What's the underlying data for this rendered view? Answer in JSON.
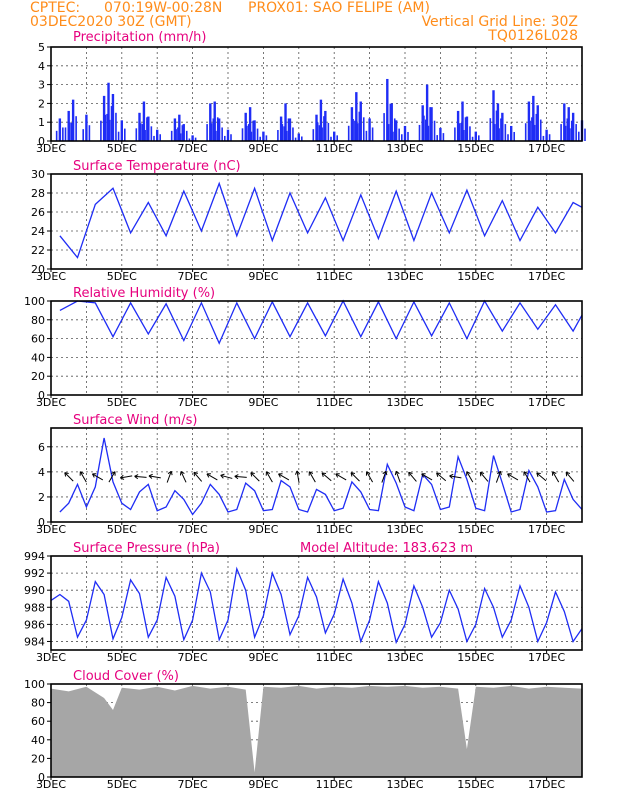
{
  "header": {
    "source": "CPTEC:",
    "coords": "070:19W-00:28N",
    "location": "PROX01: SAO FELIPE (AM)",
    "run": "03DEC2020 30Z (GMT)",
    "grid_note": "Vertical Grid Line: 30Z",
    "model_code": "TQ0126L028"
  },
  "colors": {
    "header": "#ff8c1a",
    "title": "#e6007e",
    "series": "#1f2df5",
    "cloud": "#a6a6a6",
    "grid": "#555555"
  },
  "x_ticks": [
    "3DEC",
    "5DEC",
    "7DEC",
    "9DEC",
    "11DEC",
    "13DEC",
    "15DEC",
    "17DEC"
  ],
  "chart_data": [
    {
      "id": "precip",
      "type": "bar",
      "title": "Precipitation (mm/h)",
      "ylim": [
        0,
        5
      ],
      "yticks": [
        "0",
        "1",
        "2",
        "3",
        "4",
        "5"
      ],
      "grid": true,
      "x": [
        "2020-12-03T06",
        "2020-12-03T12",
        "2020-12-03T15",
        "2020-12-04T00",
        "2020-12-04T12",
        "2020-12-04T15",
        "2020-12-04T18",
        "2020-12-05T00",
        "2020-12-05T12",
        "2020-12-05T15",
        "2020-12-05T18",
        "2020-12-06T00",
        "2020-12-06T12",
        "2020-12-06T15",
        "2020-12-06T18",
        "2020-12-07T00",
        "2020-12-07T12",
        "2020-12-07T15",
        "2020-12-07T18",
        "2020-12-08T00",
        "2020-12-08T12",
        "2020-12-08T15",
        "2020-12-08T18",
        "2020-12-09T00",
        "2020-12-09T12",
        "2020-12-09T15",
        "2020-12-09T18",
        "2020-12-10T00",
        "2020-12-10T12",
        "2020-12-10T15",
        "2020-12-10T18",
        "2020-12-11T00",
        "2020-12-11T12",
        "2020-12-11T15",
        "2020-12-11T18",
        "2020-12-12T00",
        "2020-12-12T12",
        "2020-12-12T15",
        "2020-12-12T18",
        "2020-12-13T00",
        "2020-12-13T12",
        "2020-12-13T15",
        "2020-12-13T18",
        "2020-12-14T00",
        "2020-12-14T12",
        "2020-12-14T15",
        "2020-12-14T18",
        "2020-12-15T00",
        "2020-12-15T12",
        "2020-12-15T15",
        "2020-12-15T18",
        "2020-12-16T00",
        "2020-12-16T12",
        "2020-12-16T15",
        "2020-12-16T18",
        "2020-12-17T00",
        "2020-12-17T12",
        "2020-12-17T15",
        "2020-12-17T18",
        "2020-12-18T00"
      ],
      "values": [
        1.2,
        1.6,
        2.2,
        1.4,
        2.4,
        3.1,
        2.5,
        1.1,
        1.5,
        2.1,
        1.3,
        0.6,
        1.2,
        1.4,
        0.9,
        0.3,
        2.0,
        2.1,
        1.2,
        0.6,
        1.5,
        1.8,
        1.1,
        0.5,
        1.3,
        2.0,
        1.2,
        0.4,
        1.4,
        2.2,
        1.6,
        0.5,
        1.8,
        2.6,
        2.1,
        1.2,
        3.3,
        2.0,
        1.1,
        0.8,
        1.9,
        3.0,
        1.8,
        0.7,
        1.6,
        2.1,
        1.3,
        0.5,
        2.7,
        2.0,
        1.5,
        0.8,
        2.1,
        2.4,
        1.9,
        0.6,
        2.0,
        1.8,
        1.5,
        1.1
      ]
    },
    {
      "id": "temp",
      "type": "line",
      "title": "Surface Temperature (nC)",
      "ylim": [
        20,
        30
      ],
      "yticks": [
        "20",
        "22",
        "24",
        "26",
        "28",
        "30"
      ],
      "grid": true,
      "x": [
        "2020-12-03T06",
        "2020-12-03T18",
        "2020-12-04T06",
        "2020-12-04T18",
        "2020-12-05T06",
        "2020-12-05T18",
        "2020-12-06T06",
        "2020-12-06T18",
        "2020-12-07T06",
        "2020-12-07T18",
        "2020-12-08T06",
        "2020-12-08T18",
        "2020-12-09T06",
        "2020-12-09T18",
        "2020-12-10T06",
        "2020-12-10T18",
        "2020-12-11T06",
        "2020-12-11T18",
        "2020-12-12T06",
        "2020-12-12T18",
        "2020-12-13T06",
        "2020-12-13T18",
        "2020-12-14T06",
        "2020-12-14T18",
        "2020-12-15T06",
        "2020-12-15T18",
        "2020-12-16T06",
        "2020-12-16T18",
        "2020-12-17T06",
        "2020-12-17T18",
        "2020-12-18T00"
      ],
      "values": [
        23.5,
        21.2,
        26.8,
        28.5,
        23.8,
        27.0,
        23.5,
        28.2,
        24.0,
        29.0,
        23.5,
        28.5,
        23.0,
        28.0,
        23.8,
        27.5,
        23.0,
        27.8,
        23.2,
        28.2,
        23.0,
        28.0,
        23.8,
        28.3,
        23.5,
        27.2,
        23.0,
        26.5,
        23.8,
        27.0,
        26.5
      ]
    },
    {
      "id": "rh",
      "type": "line",
      "title": "Relative Humidity (%)",
      "ylim": [
        0,
        100
      ],
      "yticks": [
        "0",
        "20",
        "40",
        "60",
        "80",
        "100"
      ],
      "grid": true,
      "x": [
        "2020-12-03T06",
        "2020-12-03T18",
        "2020-12-04T06",
        "2020-12-04T18",
        "2020-12-05T06",
        "2020-12-05T18",
        "2020-12-06T06",
        "2020-12-06T18",
        "2020-12-07T06",
        "2020-12-07T18",
        "2020-12-08T06",
        "2020-12-08T18",
        "2020-12-09T06",
        "2020-12-09T18",
        "2020-12-10T06",
        "2020-12-10T18",
        "2020-12-11T06",
        "2020-12-11T18",
        "2020-12-12T06",
        "2020-12-12T18",
        "2020-12-13T06",
        "2020-12-13T18",
        "2020-12-14T06",
        "2020-12-14T18",
        "2020-12-15T06",
        "2020-12-15T18",
        "2020-12-16T06",
        "2020-12-16T18",
        "2020-12-17T06",
        "2020-12-17T18",
        "2020-12-18T00"
      ],
      "values": [
        90,
        100,
        98,
        62,
        98,
        65,
        97,
        58,
        98,
        55,
        98,
        60,
        99,
        62,
        98,
        63,
        100,
        62,
        99,
        60,
        99,
        63,
        98,
        60,
        100,
        68,
        98,
        70,
        96,
        68,
        85
      ]
    },
    {
      "id": "wind",
      "type": "line",
      "title": "Surface Wind (m/s)",
      "ylim": [
        0,
        7.5
      ],
      "yticks": [
        "0",
        "2",
        "4",
        "6"
      ],
      "grid": true,
      "x": [
        "2020-12-03T06",
        "2020-12-03T12",
        "2020-12-03T18",
        "2020-12-04T00",
        "2020-12-04T06",
        "2020-12-04T12",
        "2020-12-04T18",
        "2020-12-05T00",
        "2020-12-05T06",
        "2020-12-05T12",
        "2020-12-05T18",
        "2020-12-06T00",
        "2020-12-06T06",
        "2020-12-06T12",
        "2020-12-06T18",
        "2020-12-07T00",
        "2020-12-07T06",
        "2020-12-07T12",
        "2020-12-07T18",
        "2020-12-08T00",
        "2020-12-08T06",
        "2020-12-08T12",
        "2020-12-08T18",
        "2020-12-09T00",
        "2020-12-09T06",
        "2020-12-09T12",
        "2020-12-09T18",
        "2020-12-10T00",
        "2020-12-10T06",
        "2020-12-10T12",
        "2020-12-10T18",
        "2020-12-11T00",
        "2020-12-11T06",
        "2020-12-11T12",
        "2020-12-11T18",
        "2020-12-12T00",
        "2020-12-12T06",
        "2020-12-12T12",
        "2020-12-12T18",
        "2020-12-13T00",
        "2020-12-13T06",
        "2020-12-13T12",
        "2020-12-13T18",
        "2020-12-14T00",
        "2020-12-14T06",
        "2020-12-14T12",
        "2020-12-14T18",
        "2020-12-15T00",
        "2020-12-15T06",
        "2020-12-15T12",
        "2020-12-15T18",
        "2020-12-16T00",
        "2020-12-16T06",
        "2020-12-16T12",
        "2020-12-16T18",
        "2020-12-17T00",
        "2020-12-17T06",
        "2020-12-17T12",
        "2020-12-17T18",
        "2020-12-18T00"
      ],
      "values": [
        0.8,
        1.5,
        3.0,
        1.2,
        2.8,
        6.7,
        3.2,
        1.5,
        1.0,
        2.4,
        3.0,
        0.9,
        1.2,
        2.5,
        1.8,
        0.6,
        1.5,
        3.0,
        2.2,
        0.8,
        1.0,
        3.1,
        2.5,
        0.9,
        1.0,
        3.3,
        2.8,
        1.0,
        0.8,
        2.6,
        2.2,
        0.9,
        1.1,
        3.2,
        2.4,
        1.0,
        0.9,
        4.6,
        3.1,
        1.2,
        0.9,
        3.8,
        3.0,
        1.0,
        1.2,
        5.2,
        3.4,
        1.1,
        0.9,
        5.3,
        3.1,
        0.8,
        1.0,
        4.1,
        2.8,
        0.8,
        0.9,
        3.4,
        1.8,
        1.0
      ],
      "arrow_directions_deg": [
        315,
        330,
        300,
        30,
        260,
        275,
        280,
        20,
        335,
        320,
        300,
        285,
        275,
        315,
        330,
        300,
        350,
        330,
        310,
        300,
        315,
        330,
        20,
        340,
        320,
        300,
        310,
        280,
        330,
        320,
        20,
        300,
        330,
        310,
        330,
        320
      ]
    },
    {
      "id": "pressure",
      "type": "line",
      "title": "Surface Pressure (hPa)",
      "annotation": "Model Altitude: 183.623 m",
      "ylim": [
        983,
        994
      ],
      "yticks": [
        "984",
        "986",
        "988",
        "990",
        "992",
        "994"
      ],
      "grid": true,
      "x": [
        "2020-12-03T00",
        "2020-12-03T06",
        "2020-12-03T12",
        "2020-12-03T18",
        "2020-12-04T00",
        "2020-12-04T06",
        "2020-12-04T12",
        "2020-12-04T18",
        "2020-12-05T00",
        "2020-12-05T06",
        "2020-12-05T12",
        "2020-12-05T18",
        "2020-12-06T00",
        "2020-12-06T06",
        "2020-12-06T12",
        "2020-12-06T18",
        "2020-12-07T00",
        "2020-12-07T06",
        "2020-12-07T12",
        "2020-12-07T18",
        "2020-12-08T00",
        "2020-12-08T06",
        "2020-12-08T12",
        "2020-12-08T18",
        "2020-12-09T00",
        "2020-12-09T06",
        "2020-12-09T12",
        "2020-12-09T18",
        "2020-12-10T00",
        "2020-12-10T06",
        "2020-12-10T12",
        "2020-12-10T18",
        "2020-12-11T00",
        "2020-12-11T06",
        "2020-12-11T12",
        "2020-12-11T18",
        "2020-12-12T00",
        "2020-12-12T06",
        "2020-12-12T12",
        "2020-12-12T18",
        "2020-12-13T00",
        "2020-12-13T06",
        "2020-12-13T12",
        "2020-12-13T18",
        "2020-12-14T00",
        "2020-12-14T06",
        "2020-12-14T12",
        "2020-12-14T18",
        "2020-12-15T00",
        "2020-12-15T06",
        "2020-12-15T12",
        "2020-12-15T18",
        "2020-12-16T00",
        "2020-12-16T06",
        "2020-12-16T12",
        "2020-12-16T18",
        "2020-12-17T00",
        "2020-12-17T06",
        "2020-12-17T12",
        "2020-12-17T18",
        "2020-12-18T00"
      ],
      "values": [
        988.8,
        989.5,
        988.7,
        984.5,
        986.5,
        991.0,
        989.5,
        984.3,
        986.8,
        991.2,
        989.6,
        984.5,
        986.5,
        991.5,
        989.3,
        984.2,
        986.5,
        992.0,
        989.8,
        984.2,
        986.5,
        992.5,
        990.0,
        984.5,
        987.0,
        992.0,
        989.5,
        984.8,
        987.0,
        991.5,
        989.2,
        985.0,
        987.2,
        991.3,
        988.5,
        984.0,
        986.5,
        991.0,
        988.5,
        983.9,
        986.0,
        990.5,
        988.0,
        984.5,
        986.2,
        990.0,
        987.8,
        984.0,
        986.0,
        990.2,
        988.0,
        984.5,
        986.5,
        990.5,
        988.0,
        984.0,
        986.2,
        989.8,
        987.5,
        984.0,
        985.5
      ]
    },
    {
      "id": "cloud",
      "type": "area",
      "title": "Cloud Cover (%)",
      "ylim": [
        0,
        100
      ],
      "yticks": [
        "0",
        "20",
        "40",
        "60",
        "80",
        "100"
      ],
      "grid": true,
      "x": [
        "2020-12-03T00",
        "2020-12-03T12",
        "2020-12-04T00",
        "2020-12-04T12",
        "2020-12-04T18",
        "2020-12-05T00",
        "2020-12-05T12",
        "2020-12-06T00",
        "2020-12-06T12",
        "2020-12-07T00",
        "2020-12-07T12",
        "2020-12-08T00",
        "2020-12-08T12",
        "2020-12-08T18",
        "2020-12-09T00",
        "2020-12-09T12",
        "2020-12-10T00",
        "2020-12-10T12",
        "2020-12-11T00",
        "2020-12-11T12",
        "2020-12-12T00",
        "2020-12-12T12",
        "2020-12-13T00",
        "2020-12-13T12",
        "2020-12-14T00",
        "2020-12-14T12",
        "2020-12-14T18",
        "2020-12-15T00",
        "2020-12-15T12",
        "2020-12-16T00",
        "2020-12-16T12",
        "2020-12-17T00",
        "2020-12-17T12",
        "2020-12-18T00"
      ],
      "values": [
        95,
        92,
        97,
        85,
        72,
        96,
        94,
        97,
        93,
        98,
        95,
        97,
        94,
        5,
        97,
        96,
        98,
        95,
        97,
        96,
        98,
        97,
        98,
        96,
        97,
        95,
        30,
        97,
        96,
        98,
        95,
        97,
        96,
        95
      ]
    }
  ]
}
